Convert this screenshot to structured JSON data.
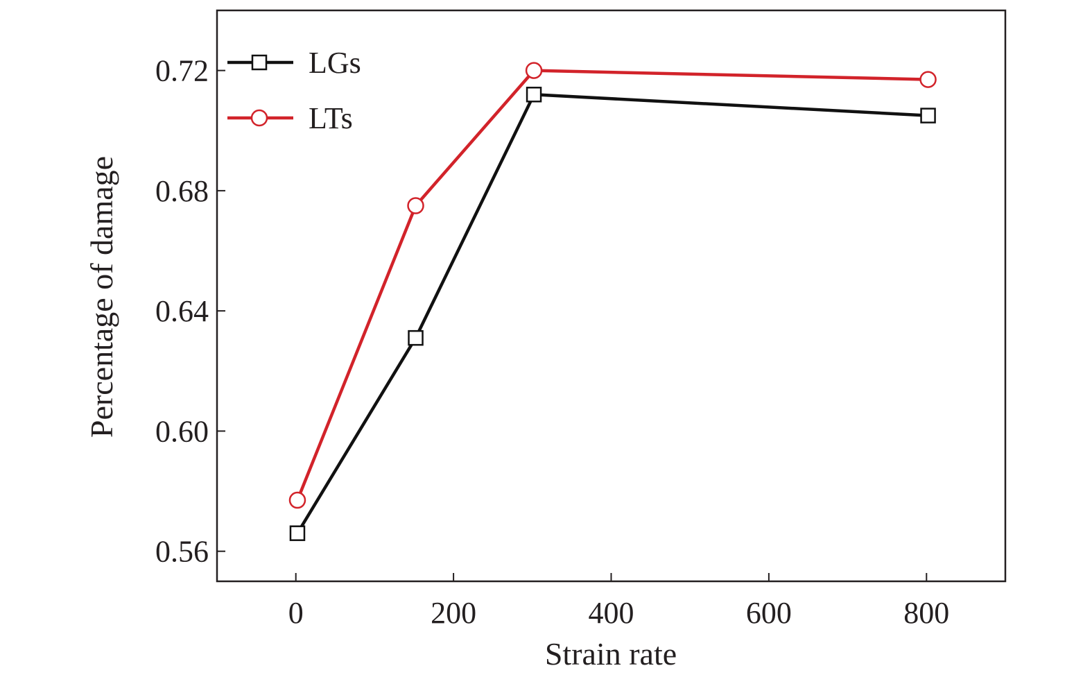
{
  "chart_data": {
    "type": "line",
    "title": "",
    "xlabel": "Strain rate",
    "ylabel": "Percentage of damage",
    "xlim": [
      -100,
      900
    ],
    "ylim": [
      0.55,
      0.74
    ],
    "xticks": [
      0,
      200,
      400,
      600,
      800
    ],
    "yticks": [
      0.56,
      0.6,
      0.64,
      0.68,
      0.72
    ],
    "xtick_labels": [
      "0",
      "200",
      "400",
      "600",
      "800"
    ],
    "ytick_labels": [
      "0.56",
      "0.60",
      "0.64",
      "0.68",
      "0.72"
    ],
    "grid": false,
    "legend_position": "top-left",
    "series": [
      {
        "name": "LGs",
        "color": "#111111",
        "marker": "square",
        "x": [
          2,
          152,
          302,
          802
        ],
        "y": [
          0.566,
          0.631,
          0.712,
          0.705
        ]
      },
      {
        "name": "LTs",
        "color": "#d2232a",
        "marker": "circle",
        "x": [
          2,
          152,
          302,
          802
        ],
        "y": [
          0.577,
          0.675,
          0.72,
          0.717
        ]
      }
    ]
  }
}
